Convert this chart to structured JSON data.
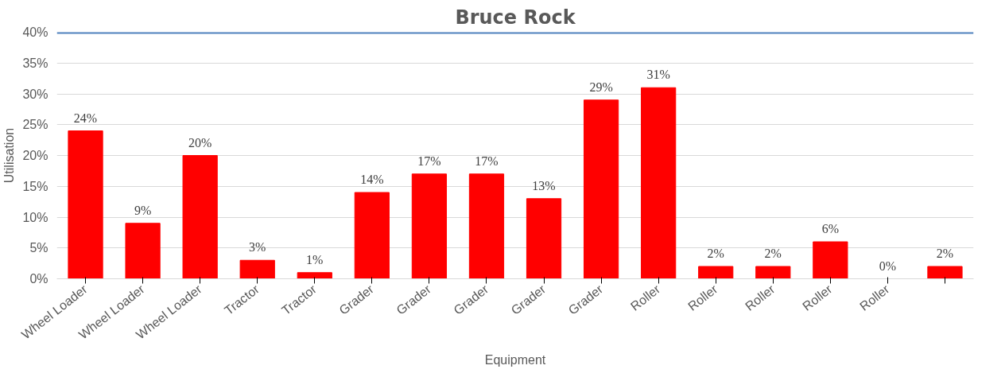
{
  "chart_data": {
    "type": "bar",
    "title": "Bruce Rock",
    "xlabel": "Equipment",
    "ylabel": "Utilisation",
    "categories": [
      "Wheel Loader",
      "Wheel Loader",
      "Wheel Loader",
      "Tractor",
      "Tractor",
      "Grader",
      "Grader",
      "Grader",
      "Grader",
      "Grader",
      "Roller",
      "Roller",
      "Roller",
      "Roller",
      "Roller",
      null
    ],
    "values": [
      24,
      9,
      20,
      3,
      1,
      14,
      17,
      17,
      13,
      29,
      31,
      2,
      2,
      6,
      0,
      2
    ],
    "color": "#ff0000",
    "value_labels": [
      "24%",
      "9%",
      "20%",
      "3%",
      "1%",
      "14%",
      "17%",
      "17%",
      "13%",
      "29%",
      "31%",
      "2%",
      "2%",
      "6%",
      "0%",
      "2%"
    ],
    "ylim": [
      0,
      40
    ],
    "yticks": [
      {
        "value": 0,
        "label": "0%"
      },
      {
        "value": 5,
        "label": "5%"
      },
      {
        "value": 10,
        "label": "10%"
      },
      {
        "value": 15,
        "label": "15%"
      },
      {
        "value": 20,
        "label": "20%"
      },
      {
        "value": 25,
        "label": "25%"
      },
      {
        "value": 30,
        "label": "30%"
      },
      {
        "value": 35,
        "label": "35%"
      },
      {
        "value": 40,
        "label": "40%"
      }
    ],
    "ref_lines": [
      {
        "axis": "y",
        "value": 40,
        "color": "#4f81bd"
      }
    ],
    "grid": "y"
  }
}
